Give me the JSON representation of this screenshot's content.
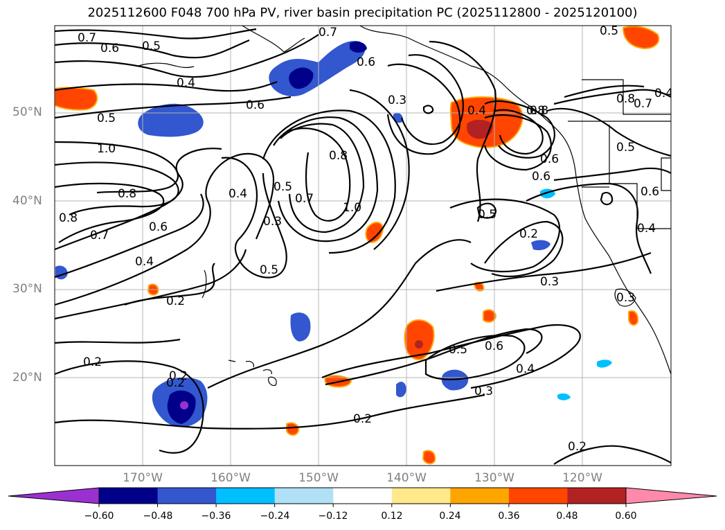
{
  "title": "2025112600 F048 700 hPa PV, river basin precipitation PC (2025112800 - 2025120100)",
  "axes": {
    "lat_labels": [
      "50°N",
      "40°N",
      "30°N",
      "20°N"
    ],
    "lon_labels": [
      "170°W",
      "160°W",
      "150°W",
      "140°W",
      "130°W",
      "120°W"
    ]
  },
  "colorbar": {
    "ticks": [
      "−0.60",
      "−0.48",
      "−0.36",
      "−0.24",
      "−0.12",
      "0.12",
      "0.24",
      "0.36",
      "0.48",
      "0.60"
    ],
    "colors": [
      "#9b30d0",
      "#00008b",
      "#3257cf",
      "#00bfff",
      "#b0e0f6",
      "#ffffff",
      "#ffe98a",
      "#ffa500",
      "#ff4500",
      "#b22222",
      "#ff89aa"
    ]
  },
  "contour_labels": [
    "0.7",
    "0.6",
    "0.5",
    "0.4",
    "0.6",
    "0.5",
    "1.0",
    "0.8",
    "0.8",
    "0.7",
    "0.6",
    "0.4",
    "0.2",
    "0.2",
    "0.2",
    "0.4",
    "0.5",
    "0.3",
    "0.5",
    "0.7",
    "1.0",
    "0.8",
    "0.7",
    "0.6",
    "0.3",
    "0.4",
    "0.8",
    "0.6",
    "0.5",
    "0.2",
    "0.3",
    "0.5",
    "0.6",
    "0.4",
    "0.3",
    "0.2",
    "0.2",
    "0.5",
    "0.8",
    "0.7",
    "0.5",
    "0.4",
    "0.8",
    "0.6",
    "0.6",
    "0.3",
    "0.4",
    "0.2"
  ]
}
